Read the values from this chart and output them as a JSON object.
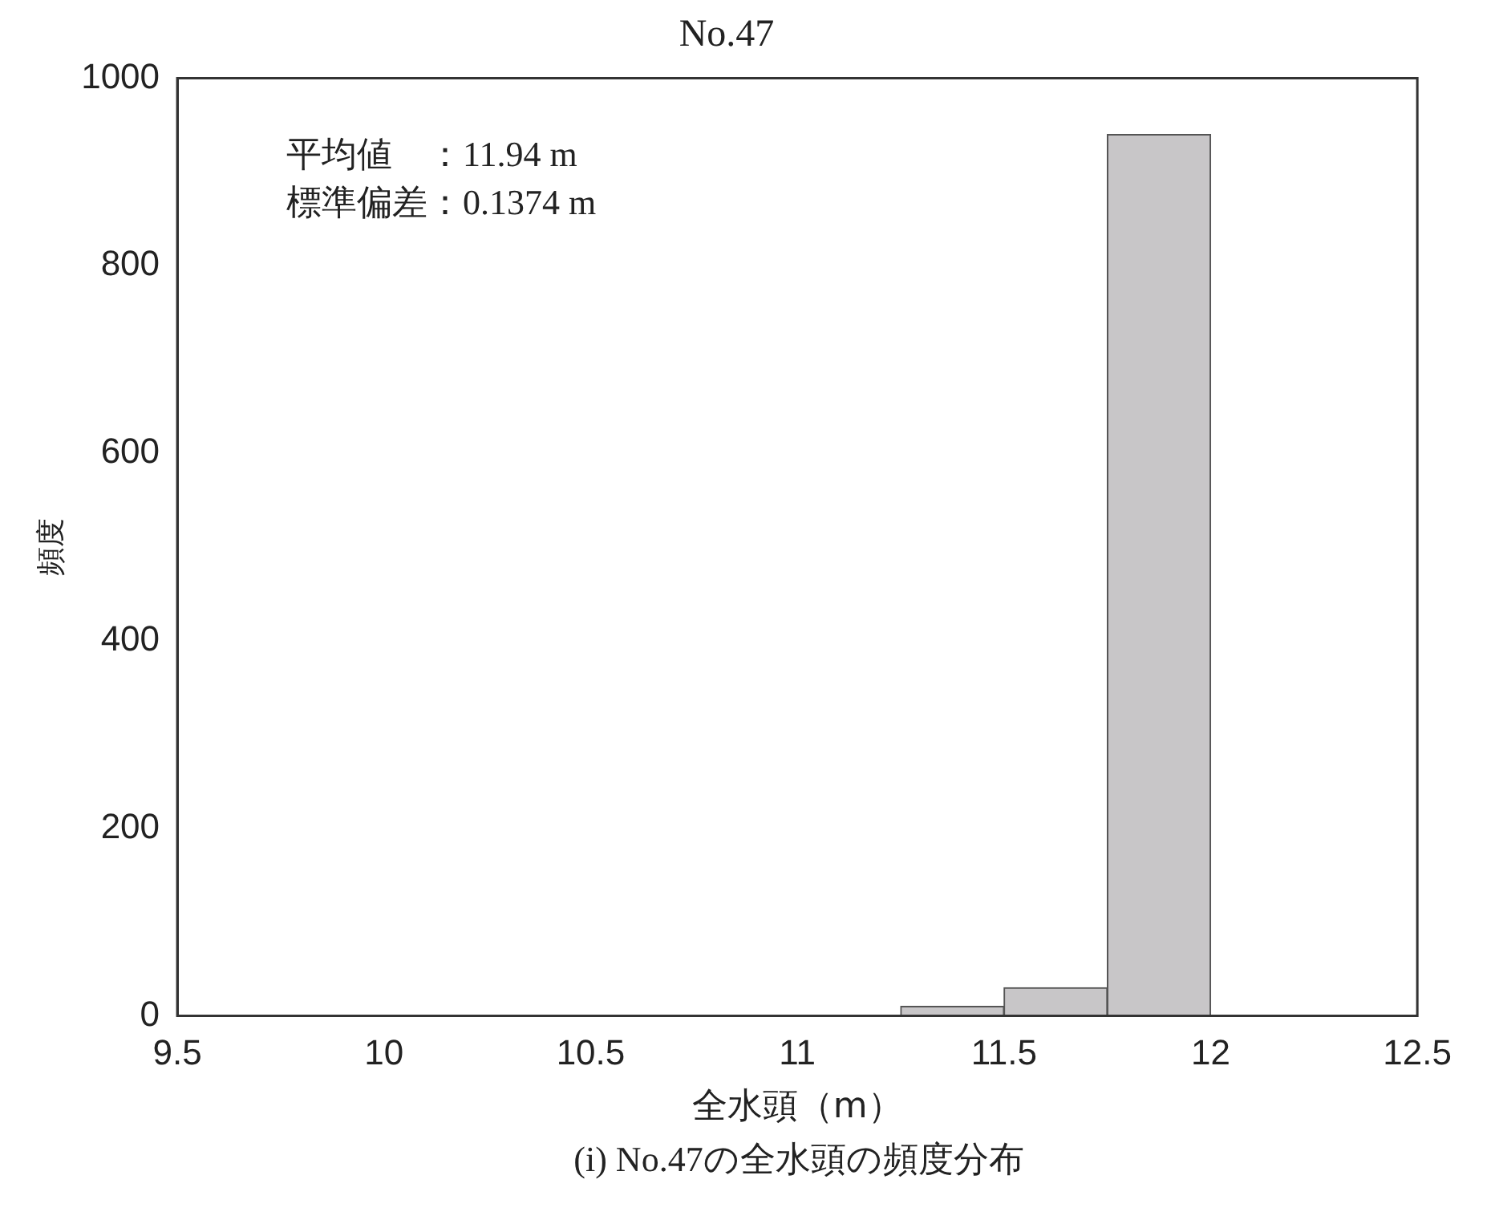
{
  "chart_data": {
    "type": "histogram",
    "title": "No.47",
    "xlabel": "全水頭（m）",
    "ylabel": "頻度",
    "bins": [
      9.5,
      9.75,
      10,
      10.25,
      10.5,
      10.75,
      11,
      11.25,
      11.5,
      11.75,
      12,
      12.25,
      12.5
    ],
    "values": [
      0,
      0,
      0,
      0,
      0,
      0,
      0,
      10,
      30,
      940,
      0,
      0
    ],
    "color": "#c8c6c8",
    "xlim": [
      9.5,
      12.5
    ],
    "xticks": [
      9.5,
      10,
      10.5,
      11,
      11.5,
      12,
      12.5
    ],
    "ylim": [
      0,
      1000
    ],
    "yticks": [
      0,
      200,
      400,
      600,
      800,
      1000
    ],
    "grid": false,
    "legend": false,
    "annotations": [
      "平均値　：11.94 m",
      "標準偏差：0.1374 m",
      "(i) No.47の全水頭の頻度分布"
    ]
  }
}
